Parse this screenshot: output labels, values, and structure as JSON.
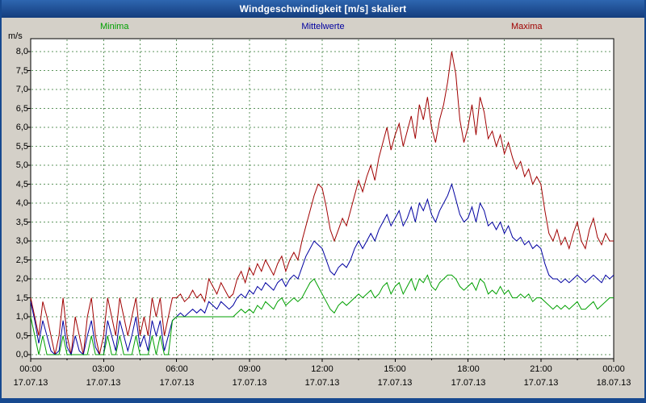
{
  "window": {
    "title": "Windgeschwindigkeit [m/s] skaliert"
  },
  "chart_data": {
    "type": "line",
    "title": "Windgeschwindigkeit [m/s] skaliert",
    "ylabel": "m/s",
    "ylim": [
      0,
      8.25
    ],
    "grid": true,
    "legend_position": "top",
    "sample_interval_minutes": 10,
    "y_tick_labels": [
      "8,0",
      "7,5",
      "7,0",
      "6,5",
      "6,0",
      "5,5",
      "5,0",
      "4,5",
      "4,0",
      "3,5",
      "3,0",
      "2,5",
      "2,0",
      "1,5",
      "1,0",
      "0,5",
      "0,0"
    ],
    "x_tick_labels": [
      "00:00",
      "03:00",
      "06:00",
      "09:00",
      "12:00",
      "15:00",
      "18:00",
      "21:00",
      "00:00"
    ],
    "x_date_labels": [
      "17.07.13",
      "17.07.13",
      "17.07.13",
      "17.07.13",
      "17.07.13",
      "17.07.13",
      "17.07.13",
      "17.07.13",
      "18.07.13"
    ],
    "series": [
      {
        "name": "Minima",
        "color": "#00A000",
        "values": [
          1.0,
          0.5,
          0.0,
          0.5,
          0.0,
          0.0,
          0.0,
          0.0,
          0.5,
          0.0,
          0.0,
          0.0,
          0.0,
          0.0,
          0.0,
          0.5,
          0.0,
          0.0,
          0.0,
          0.5,
          0.0,
          0.0,
          0.5,
          0.0,
          0.0,
          0.0,
          0.5,
          0.0,
          0.0,
          0.0,
          0.5,
          0.0,
          0.5,
          0.0,
          0.0,
          0.9,
          1.0,
          1.0,
          1.0,
          1.0,
          1.0,
          1.0,
          1.0,
          1.0,
          1.0,
          1.0,
          1.0,
          1.0,
          1.0,
          1.0,
          1.0,
          1.1,
          1.2,
          1.1,
          1.2,
          1.1,
          1.3,
          1.2,
          1.4,
          1.3,
          1.2,
          1.4,
          1.5,
          1.3,
          1.4,
          1.5,
          1.4,
          1.5,
          1.7,
          1.9,
          2.0,
          1.8,
          1.6,
          1.4,
          1.2,
          1.1,
          1.3,
          1.4,
          1.3,
          1.4,
          1.5,
          1.6,
          1.5,
          1.6,
          1.7,
          1.5,
          1.6,
          1.8,
          1.9,
          1.6,
          1.8,
          1.9,
          1.6,
          1.8,
          2.0,
          1.7,
          2.0,
          1.9,
          2.1,
          1.8,
          1.7,
          1.9,
          2.0,
          2.1,
          2.1,
          2.0,
          1.8,
          1.7,
          1.8,
          1.9,
          1.7,
          2.0,
          1.9,
          1.6,
          1.7,
          1.6,
          1.8,
          1.6,
          1.7,
          1.5,
          1.5,
          1.6,
          1.5,
          1.6,
          1.4,
          1.5,
          1.5,
          1.4,
          1.3,
          1.2,
          1.3,
          1.2,
          1.3,
          1.2,
          1.3,
          1.4,
          1.2,
          1.2,
          1.3,
          1.4,
          1.2,
          1.3,
          1.4,
          1.5,
          1.5
        ]
      },
      {
        "name": "Mittelwerte",
        "color": "#0000A0",
        "values": [
          1.4,
          0.9,
          0.3,
          0.9,
          0.5,
          0.1,
          0.0,
          0.1,
          0.9,
          0.2,
          0.0,
          0.5,
          0.1,
          0.0,
          0.5,
          0.9,
          0.2,
          0.0,
          0.0,
          0.9,
          0.5,
          0.1,
          0.9,
          0.5,
          0.1,
          0.5,
          1.0,
          0.2,
          0.5,
          0.1,
          0.9,
          0.5,
          0.9,
          0.1,
          0.5,
          0.9,
          1.0,
          1.1,
          1.0,
          1.1,
          1.2,
          1.1,
          1.2,
          1.1,
          1.4,
          1.3,
          1.2,
          1.4,
          1.3,
          1.2,
          1.3,
          1.5,
          1.6,
          1.5,
          1.7,
          1.6,
          1.8,
          1.7,
          1.9,
          1.8,
          1.7,
          1.9,
          2.0,
          1.8,
          2.0,
          2.1,
          2.0,
          2.3,
          2.6,
          2.8,
          3.0,
          2.9,
          2.8,
          2.5,
          2.2,
          2.1,
          2.3,
          2.4,
          2.3,
          2.5,
          2.8,
          3.0,
          2.8,
          3.0,
          3.2,
          3.0,
          3.3,
          3.5,
          3.7,
          3.4,
          3.6,
          3.8,
          3.4,
          3.6,
          3.9,
          3.5,
          4.0,
          3.8,
          4.1,
          3.7,
          3.5,
          3.8,
          4.0,
          4.2,
          4.5,
          4.1,
          3.7,
          3.5,
          3.6,
          3.9,
          3.5,
          4.0,
          3.8,
          3.4,
          3.5,
          3.3,
          3.5,
          3.2,
          3.4,
          3.1,
          3.0,
          3.1,
          2.9,
          3.0,
          2.8,
          2.9,
          2.8,
          2.4,
          2.1,
          2.0,
          2.0,
          1.9,
          2.0,
          1.9,
          2.0,
          2.1,
          2.0,
          1.9,
          2.0,
          2.1,
          2.0,
          1.9,
          2.1,
          2.0,
          2.1
        ]
      },
      {
        "name": "Maxima",
        "color": "#A00000",
        "values": [
          1.5,
          1.0,
          0.5,
          1.4,
          1.0,
          0.5,
          0.0,
          0.5,
          1.5,
          0.5,
          0.0,
          1.0,
          0.5,
          0.0,
          1.0,
          1.5,
          0.5,
          0.0,
          0.5,
          1.5,
          1.0,
          0.5,
          1.5,
          1.0,
          0.5,
          1.0,
          1.5,
          0.5,
          1.0,
          0.5,
          1.5,
          1.0,
          1.5,
          0.5,
          1.0,
          1.5,
          1.5,
          1.6,
          1.4,
          1.5,
          1.7,
          1.5,
          1.6,
          1.4,
          2.0,
          1.8,
          1.6,
          1.9,
          1.7,
          1.5,
          1.6,
          2.0,
          2.2,
          1.9,
          2.3,
          2.1,
          2.4,
          2.2,
          2.5,
          2.3,
          2.1,
          2.4,
          2.6,
          2.2,
          2.5,
          2.7,
          2.5,
          3.0,
          3.4,
          3.8,
          4.2,
          4.5,
          4.4,
          3.9,
          3.3,
          3.0,
          3.3,
          3.6,
          3.4,
          3.8,
          4.2,
          4.6,
          4.3,
          4.7,
          5.0,
          4.6,
          5.2,
          5.6,
          6.0,
          5.4,
          5.8,
          6.1,
          5.5,
          5.9,
          6.3,
          5.7,
          6.6,
          6.2,
          6.8,
          6.0,
          5.6,
          6.2,
          6.6,
          7.2,
          8.0,
          7.4,
          6.2,
          5.6,
          6.0,
          6.6,
          5.8,
          6.8,
          6.4,
          5.7,
          5.9,
          5.5,
          5.8,
          5.3,
          5.6,
          5.2,
          4.9,
          5.1,
          4.7,
          4.9,
          4.5,
          4.7,
          4.5,
          3.8,
          3.2,
          3.0,
          3.3,
          2.9,
          3.1,
          2.8,
          3.2,
          3.5,
          3.0,
          2.8,
          3.3,
          3.6,
          3.1,
          2.9,
          3.2,
          3.0,
          3.0
        ]
      }
    ]
  }
}
